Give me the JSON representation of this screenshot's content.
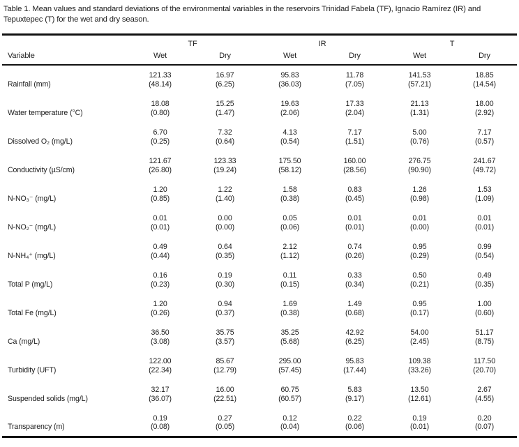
{
  "caption": "Table 1. Mean values and standard deviations of the environmental variables in the reservoirs Trinidad Fabela (TF), Ignacio Ramírez (IR) and Tepuxtepec (T) for the wet and dry season.",
  "table": {
    "variable_header": "Variable",
    "group_headers": [
      "TF",
      "IR",
      "T"
    ],
    "season_headers": [
      "Wet",
      "Dry",
      "Wet",
      "Dry",
      "Wet",
      "Dry"
    ],
    "rows": [
      {
        "variable": "Rainfall (mm)",
        "means": [
          "121.33",
          "16.97",
          "95.83",
          "11.78",
          "141.53",
          "18.85"
        ],
        "sds": [
          "(48.14)",
          "(6.25)",
          "(36.03)",
          "(7.05)",
          "(57.21)",
          "(14.54)"
        ]
      },
      {
        "variable": "Water temperature (°C)",
        "means": [
          "18.08",
          "15.25",
          "19.63",
          "17.33",
          "21.13",
          "18.00"
        ],
        "sds": [
          "(0.80)",
          "(1.47)",
          "(2.06)",
          "(2.04)",
          "(1.31)",
          "(2.92)"
        ]
      },
      {
        "variable": "Dissolved O₂ (mg/L)",
        "means": [
          "6.70",
          "7.32",
          "4.13",
          "7.17",
          "5.00",
          "7.17"
        ],
        "sds": [
          "(0.25)",
          "(0.64)",
          "(0.54)",
          "(1.51)",
          "(0.76)",
          "(0.57)"
        ]
      },
      {
        "variable": "Conductivity (µS/cm)",
        "means": [
          "121.67",
          "123.33",
          "175.50",
          "160.00",
          "276.75",
          "241.67"
        ],
        "sds": [
          "(26.80)",
          "(19.24)",
          "(58.12)",
          "(28.56)",
          "(90.90)",
          "(49.72)"
        ]
      },
      {
        "variable": "N-NO₃⁻ (mg/L)",
        "means": [
          "1.20",
          "1.22",
          "1.58",
          "0.83",
          "1.26",
          "1.53"
        ],
        "sds": [
          "(0.85)",
          "(1.40)",
          "(0.38)",
          "(0.45)",
          "(0.98)",
          "(1.09)"
        ]
      },
      {
        "variable": "N-NO₂⁻ (mg/L)",
        "means": [
          "0.01",
          "0.00",
          "0.05",
          "0.01",
          "0.01",
          "0.01"
        ],
        "sds": [
          "(0.01)",
          "(0.00)",
          "(0.06)",
          "(0.01)",
          "(0.00)",
          "(0.01)"
        ]
      },
      {
        "variable": "N-NH₄⁺ (mg/L)",
        "means": [
          "0.49",
          "0.64",
          "2.12",
          "0.74",
          "0.95",
          "0.99"
        ],
        "sds": [
          "(0.44)",
          "(0.35)",
          "(1.12)",
          "(0.26)",
          "(0.29)",
          "(0.54)"
        ]
      },
      {
        "variable": "Total P (mg/L)",
        "means": [
          "0.16",
          "0.19",
          "0.11",
          "0.33",
          "0.50",
          "0.49"
        ],
        "sds": [
          "(0.23)",
          "(0.30)",
          "(0.15)",
          "(0.34)",
          "(0.21)",
          "(0.35)"
        ]
      },
      {
        "variable": "Total Fe (mg/L)",
        "means": [
          "1.20",
          "0.94",
          "1.69",
          "1.49",
          "0.95",
          "1.00"
        ],
        "sds": [
          "(0.26)",
          "(0.37)",
          "(0.38)",
          "(0.68)",
          "(0.17)",
          "(0.60)"
        ]
      },
      {
        "variable": "Ca (mg/L)",
        "means": [
          "36.50",
          "35.75",
          "35.25",
          "42.92",
          "54.00",
          "51.17"
        ],
        "sds": [
          "(3.08)",
          "(3.57)",
          "(5.68)",
          "(6.25)",
          "(2.45)",
          "(8.75)"
        ]
      },
      {
        "variable": "Turbidity (UFT)",
        "means": [
          "122.00",
          "85.67",
          "295.00",
          "95.83",
          "109.38",
          "117.50"
        ],
        "sds": [
          "(22.34)",
          "(12.79)",
          "(57.45)",
          "(17.44)",
          "(33.26)",
          "(20.70)"
        ]
      },
      {
        "variable": "Suspended solids (mg/L)",
        "means": [
          "32.17",
          "16.00",
          "60.75",
          "5.83",
          "13.50",
          "2.67"
        ],
        "sds": [
          "(36.07)",
          "(22.51)",
          "(60.57)",
          "(9.17)",
          "(12.61)",
          "(4.55)"
        ]
      },
      {
        "variable": "Transparency (m)",
        "means": [
          "0.19",
          "0.27",
          "0.12",
          "0.22",
          "0.19",
          "0.20"
        ],
        "sds": [
          "(0.08)",
          "(0.05)",
          "(0.04)",
          "(0.06)",
          "(0.01)",
          "(0.07)"
        ]
      }
    ]
  }
}
